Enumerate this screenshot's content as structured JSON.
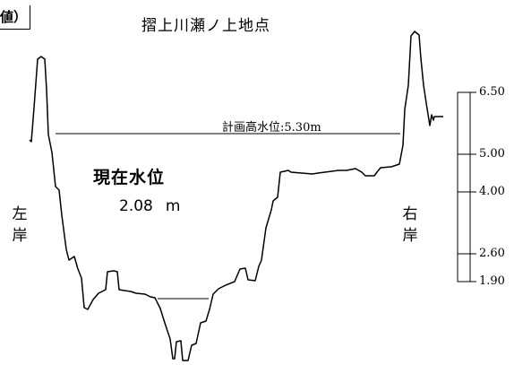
{
  "corner_label": "値）",
  "station_title": "摺上川瀬ノ上地点",
  "planned_high_water": {
    "label": "計画高水位",
    "value": "5.30m"
  },
  "current_level": {
    "title": "現在水位",
    "value": "2.08",
    "unit": "m"
  },
  "banks": {
    "left": [
      "左",
      "岸"
    ],
    "right": [
      "右",
      "岸"
    ]
  },
  "scale": {
    "ticks": [
      "6.50",
      "5.00",
      "4.00",
      "2.60",
      "1.90"
    ]
  }
}
